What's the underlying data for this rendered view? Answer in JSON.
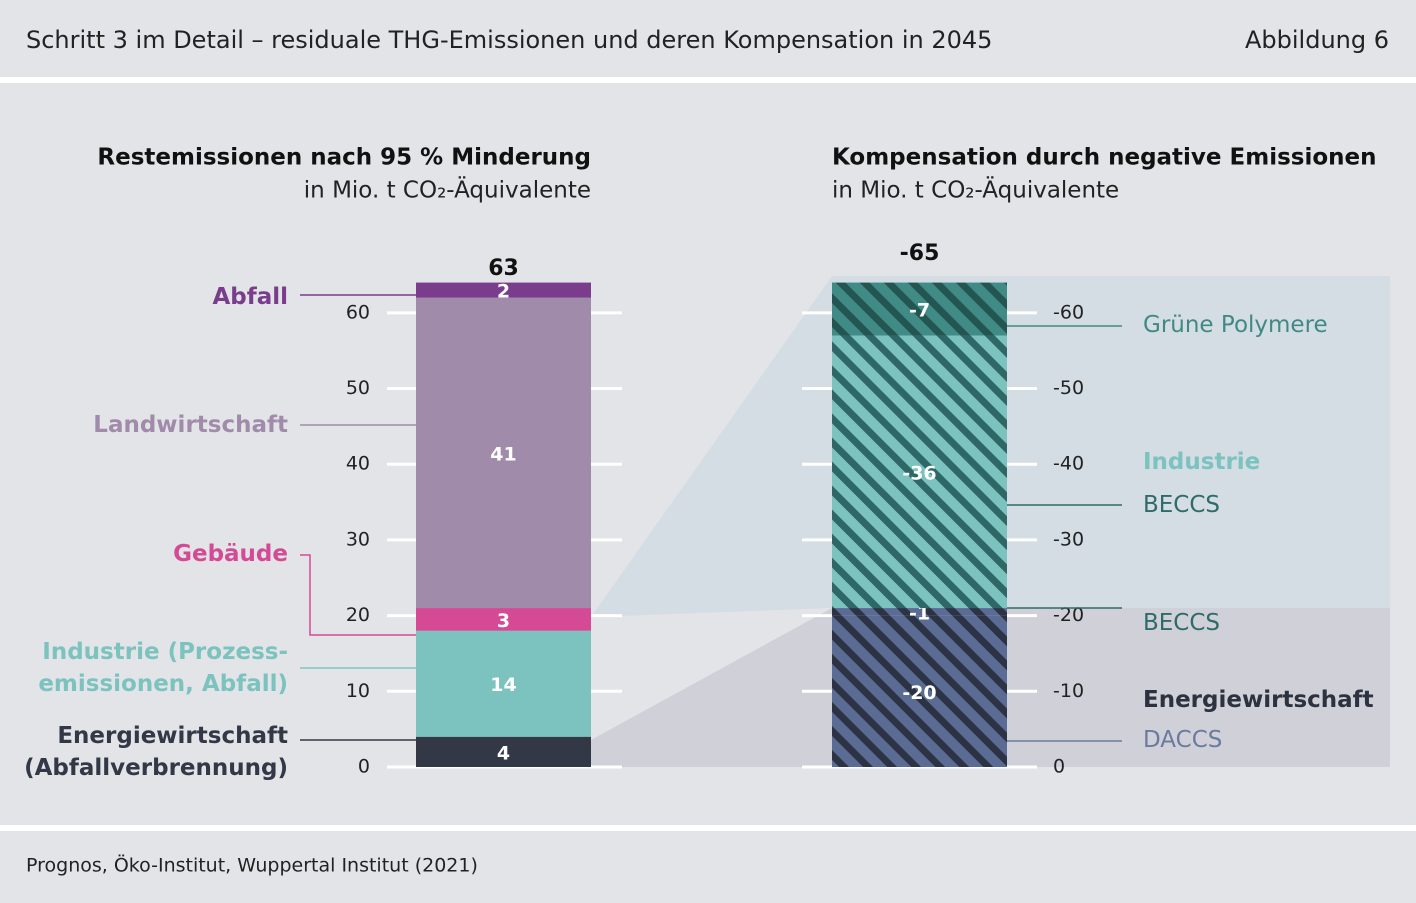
{
  "header": {
    "title": "Schritt 3 im Detail – residuale THG-Emissionen und deren Kompensation in 2045",
    "figure": "Abbildung 6"
  },
  "footer": {
    "source": "Prognos, Öko-Institut, Wuppertal Institut (2021)"
  },
  "chart_data": [
    {
      "type": "stacked-bar",
      "title": "Restemissionen nach 95 % Minderung",
      "subtitle": "in Mio. t CO₂-Äquivalente",
      "total": 63,
      "ylim": [
        0,
        65
      ],
      "yticks": [
        0,
        10,
        20,
        30,
        40,
        50,
        60
      ],
      "series": [
        {
          "name": "Energiewirtschaft\n(Abfallverbrennung)",
          "color": "#333846",
          "label_color": "#333846",
          "values": [
            4
          ]
        },
        {
          "name": "Industrie (Prozess-\nemissionen, Abfall)",
          "color": "#7cc3bf",
          "label_color": "#7cc3bf",
          "values": [
            14
          ]
        },
        {
          "name": "Gebäude",
          "color": "#d44a95",
          "label_color": "#d44a95",
          "values": [
            3
          ]
        },
        {
          "name": "Landwirtschaft",
          "color": "#a08baa",
          "label_color": "#a08baa",
          "values": [
            41
          ]
        },
        {
          "name": "Abfall",
          "color": "#7a3d8c",
          "label_color": "#7a3d8c",
          "values": [
            2
          ]
        }
      ]
    },
    {
      "type": "stacked-bar",
      "title": "Kompensation durch negative Emissionen",
      "subtitle": "in Mio. t CO₂-Äquivalente",
      "total": -65,
      "ylim": [
        0,
        -65
      ],
      "yticks": [
        0,
        -10,
        -20,
        -30,
        -40,
        -50,
        -60
      ],
      "groups": [
        {
          "name": "Industrie",
          "color": "#7cc3bf"
        },
        {
          "name": "Energiewirtschaft",
          "color": "#2c3240"
        }
      ],
      "series": [
        {
          "name": "DACCS",
          "color": "#5b6c94",
          "stripe_color": "#2b3344",
          "label_color": "#6b7a9e",
          "values": [
            -20
          ]
        },
        {
          "name": "BECCS",
          "color": "#5b6c94",
          "stripe_color": "#2b3344",
          "label_color": "#2f6b6a",
          "values": [
            -1
          ]
        },
        {
          "name": "BECCS",
          "color": "#7cc3bf",
          "stripe_color": "#2d6766",
          "label_color": "#2f6b6a",
          "values": [
            -36
          ]
        },
        {
          "name": "Grüne Polymere",
          "color": "#418b86",
          "stripe_color": "#235553",
          "label_color": "#3f8a85",
          "values": [
            -7
          ]
        }
      ]
    }
  ]
}
